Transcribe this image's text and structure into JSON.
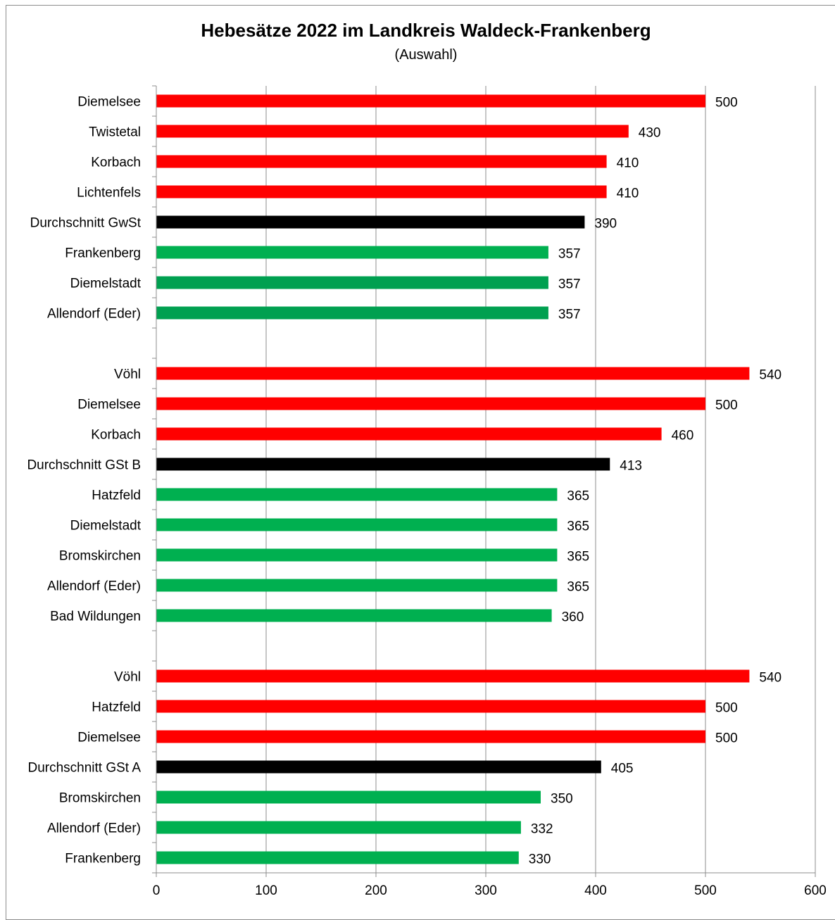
{
  "chart_data": {
    "type": "bar",
    "orientation": "horizontal",
    "title": "Hebesätze 2022 im Landkreis Waldeck-Frankenberg",
    "subtitle": "(Auswahl)",
    "xlim": [
      0,
      600
    ],
    "x_ticks": [
      0,
      100,
      200,
      300,
      400,
      500,
      600
    ],
    "grid": "vertical",
    "legend": "none",
    "colors": {
      "red": "#ff0000",
      "black": "#000000",
      "green": "#00b050",
      "dark_green": "#00a050"
    },
    "bars": [
      {
        "category": "Diemelsee",
        "value": 500,
        "color": "red"
      },
      {
        "category": "Twistetal",
        "value": 430,
        "color": "red"
      },
      {
        "category": "Korbach",
        "value": 410,
        "color": "red"
      },
      {
        "category": "Lichtenfels",
        "value": 410,
        "color": "red"
      },
      {
        "category": "Durchschnitt GwSt",
        "value": 390,
        "color": "black"
      },
      {
        "category": "Frankenberg",
        "value": 357,
        "color": "green"
      },
      {
        "category": "Diemelstadt",
        "value": 357,
        "color": "dark_green"
      },
      {
        "category": "Allendorf (Eder)",
        "value": 357,
        "color": "dark_green"
      },
      {
        "category": "",
        "value": null,
        "color": null
      },
      {
        "category": "Vöhl",
        "value": 540,
        "color": "red"
      },
      {
        "category": "Diemelsee",
        "value": 500,
        "color": "red"
      },
      {
        "category": "Korbach",
        "value": 460,
        "color": "red"
      },
      {
        "category": "Durchschnitt GSt B",
        "value": 413,
        "color": "black"
      },
      {
        "category": "Hatzfeld",
        "value": 365,
        "color": "green"
      },
      {
        "category": "Diemelstadt",
        "value": 365,
        "color": "green"
      },
      {
        "category": "Bromskirchen",
        "value": 365,
        "color": "green"
      },
      {
        "category": "Allendorf (Eder)",
        "value": 365,
        "color": "green"
      },
      {
        "category": "Bad Wildungen",
        "value": 360,
        "color": "green"
      },
      {
        "category": "",
        "value": null,
        "color": null
      },
      {
        "category": "Vöhl",
        "value": 540,
        "color": "red"
      },
      {
        "category": "Hatzfeld",
        "value": 500,
        "color": "red"
      },
      {
        "category": "Diemelsee",
        "value": 500,
        "color": "red"
      },
      {
        "category": "Durchschnitt GSt A",
        "value": 405,
        "color": "black"
      },
      {
        "category": "Bromskirchen",
        "value": 350,
        "color": "green"
      },
      {
        "category": "Allendorf (Eder)",
        "value": 332,
        "color": "green"
      },
      {
        "category": "Frankenberg",
        "value": 330,
        "color": "green"
      }
    ]
  }
}
